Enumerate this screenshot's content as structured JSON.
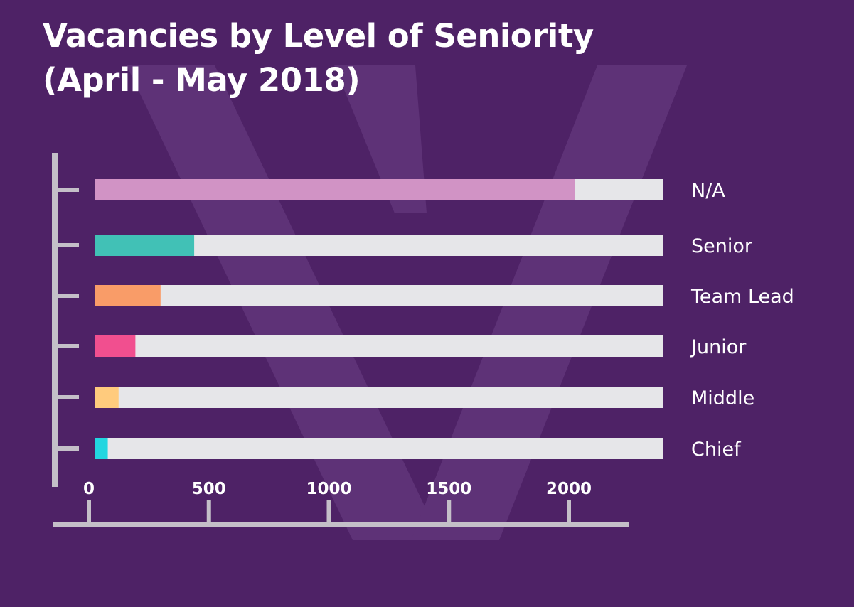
{
  "title_lines": [
    "Vacancies by Level of Seniority",
    "(April - May 2018)"
  ],
  "colors": {
    "background": "#4e2266",
    "watermark": "#5e3277",
    "track": "#e6e6e9",
    "axis": "#c4bfc8"
  },
  "chart_data": {
    "type": "bar",
    "orientation": "horizontal",
    "title": "Vacancies by Level of Seniority (April - May 2018)",
    "categories": [
      "N/A",
      "Senior",
      "Team Lead",
      "Junior",
      "Middle",
      "Chief"
    ],
    "values": [
      2000,
      415,
      275,
      170,
      100,
      55
    ],
    "bar_colors": [
      "#d193c5",
      "#41c1b6",
      "#f99c68",
      "#f14f8f",
      "#ffcb7d",
      "#22d6e0"
    ],
    "x_ticks": [
      0,
      500,
      1000,
      1500,
      2000
    ],
    "xlim": [
      0,
      2370
    ],
    "grid": false,
    "legend": "none"
  }
}
